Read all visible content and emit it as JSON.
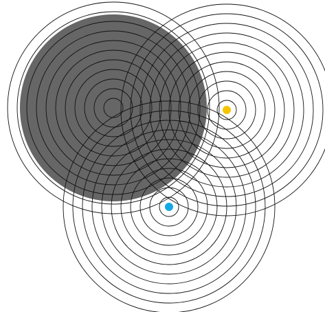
{
  "diagram": {
    "type": "concentric-circles",
    "colors": {
      "background": "#ffffff",
      "stroke": "#111111",
      "fill": "#666666",
      "yellow_marker": "#f5c400",
      "blue_marker": "#13a8e6"
    },
    "groups": [
      {
        "name": "left-group",
        "marker": "none",
        "has_filled_disk": true,
        "ring_count": 11
      },
      {
        "name": "right-group",
        "marker": "yellow-dot",
        "has_filled_disk": false,
        "ring_count": 11
      },
      {
        "name": "bottom-group",
        "marker": "blue-dot",
        "has_filled_disk": false,
        "ring_count": 11
      }
    ]
  }
}
